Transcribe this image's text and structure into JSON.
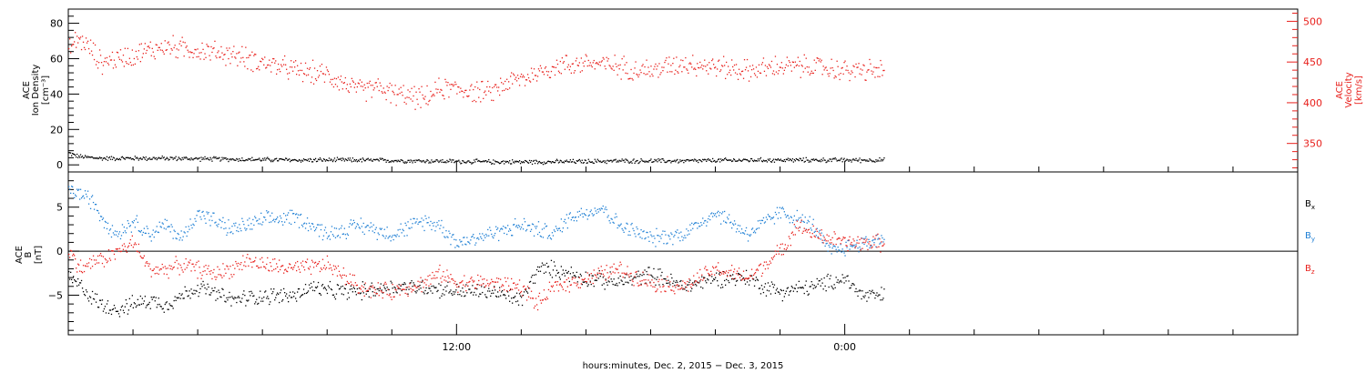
{
  "chart_data": [
    {
      "type": "scatter",
      "panel": "top",
      "left_axis": {
        "label_lines": [
          "ACE",
          "Ion Density",
          "[cm⁻³]"
        ],
        "ylim": [
          -4,
          88
        ],
        "ticks": [
          0,
          20,
          40,
          60,
          80
        ],
        "tick_labels": [
          "0",
          "20",
          "40",
          "60",
          "80"
        ],
        "color": "#000000"
      },
      "right_axis": {
        "label_lines": [
          "ACE",
          "Velocity",
          "[km/s]"
        ],
        "ylim": [
          315,
          515
        ],
        "ticks": [
          350,
          400,
          450,
          500
        ],
        "tick_labels": [
          "350",
          "400",
          "450",
          "500"
        ],
        "color": "#e8201c"
      },
      "series": [
        {
          "axis": "left",
          "color": "#000000",
          "anchors_x": [
            0,
            0.3,
            1,
            3,
            5,
            7,
            9,
            11,
            13,
            15,
            17,
            19,
            21,
            23,
            24,
            25.2
          ],
          "anchors_y": [
            7,
            5,
            4,
            4,
            3.5,
            3,
            3,
            2.5,
            2,
            2,
            2.5,
            2.5,
            3,
            3,
            3,
            3
          ]
        },
        {
          "axis": "right",
          "color": "#e8201c",
          "anchors_x": [
            0,
            0.3,
            0.7,
            1,
            2,
            3,
            4,
            5,
            6,
            7,
            8,
            8.5,
            9,
            9.5,
            10,
            11,
            11.5,
            12,
            12.5,
            13,
            13.5,
            14,
            15,
            16,
            17,
            18,
            19,
            20,
            21,
            22,
            23,
            24,
            25.2
          ],
          "anchors_y": [
            465,
            480,
            465,
            450,
            460,
            470,
            465,
            460,
            450,
            440,
            435,
            425,
            415,
            420,
            412,
            405,
            418,
            418,
            415,
            412,
            425,
            430,
            445,
            450,
            445,
            440,
            450,
            445,
            440,
            445,
            445,
            440,
            440
          ]
        }
      ]
    },
    {
      "type": "scatter",
      "panel": "bottom",
      "left_axis": {
        "label_lines": [
          "ACE",
          "B",
          "[nT]"
        ],
        "ylim": [
          -9.5,
          9
        ],
        "ticks": [
          -5,
          0,
          5
        ],
        "tick_labels": [
          "−5",
          "0",
          "5"
        ],
        "color": "#000000"
      },
      "zero_line": true,
      "legend": {
        "placement": "right",
        "entries": [
          {
            "base": "B",
            "sub": "x",
            "color": "#000000"
          },
          {
            "base": "B",
            "sub": "y",
            "color": "#1e7fd4"
          },
          {
            "base": "B",
            "sub": "z",
            "color": "#e8201c"
          }
        ]
      },
      "series": [
        {
          "name": "Bx",
          "color": "#000000",
          "anchors_x": [
            0,
            0.4,
            0.8,
            1,
            1.5,
            2,
            2.5,
            3,
            3.5,
            4,
            5,
            6,
            7,
            7.5,
            8,
            9,
            10,
            11,
            12,
            13,
            14,
            14.5,
            15,
            16,
            17,
            18,
            19,
            20,
            21,
            21.5,
            22,
            23,
            24,
            24.5,
            25.2
          ],
          "anchors_y": [
            -3,
            -4,
            -5.5,
            -6,
            -6.5,
            -6,
            -5.5,
            -6,
            -5,
            -4,
            -5.5,
            -5,
            -5,
            -4,
            -4.5,
            -4.5,
            -4,
            -4,
            -4.5,
            -4.5,
            -5.5,
            -2,
            -2,
            -3,
            -3.5,
            -2.5,
            -4,
            -3,
            -3,
            -4,
            -4.5,
            -4,
            -3,
            -5,
            -5
          ]
        },
        {
          "name": "By",
          "color": "#1e7fd4",
          "anchors_x": [
            0,
            0.4,
            0.8,
            1,
            1.5,
            2,
            2.5,
            3,
            3.5,
            4,
            5,
            6,
            7,
            8,
            9,
            10,
            11,
            11.5,
            12,
            13,
            14,
            15,
            15.5,
            16,
            16.5,
            17,
            18,
            19,
            20,
            21,
            22,
            23,
            23.5,
            24,
            25.2
          ],
          "anchors_y": [
            7,
            6.5,
            5.5,
            4,
            2,
            3.5,
            2,
            3,
            1.5,
            4.5,
            2.5,
            3.5,
            4,
            2,
            3,
            2,
            3.5,
            3,
            1,
            2,
            3,
            2,
            4,
            4.5,
            5,
            3,
            1.5,
            2,
            4.5,
            2,
            4.5,
            3,
            0,
            0.5,
            1.5
          ]
        },
        {
          "name": "Bz",
          "color": "#e8201c",
          "anchors_x": [
            0,
            0.4,
            0.8,
            1,
            1.5,
            2,
            2.5,
            3,
            3.5,
            4,
            4.5,
            5,
            5.5,
            6,
            7,
            8,
            9,
            9.5,
            10,
            11,
            11.5,
            12,
            13,
            14,
            14.5,
            15,
            16,
            17,
            18,
            19,
            20,
            21,
            22,
            22.5,
            23,
            24,
            25.2
          ],
          "anchors_y": [
            0,
            -2,
            -1,
            -1,
            0,
            1,
            -2,
            -2,
            -1.5,
            -2,
            -2.5,
            -2,
            -1,
            -1.5,
            -2,
            -1.5,
            -4,
            -4.5,
            -4.5,
            -3.5,
            -2.5,
            -3.5,
            -3.5,
            -4,
            -6,
            -4,
            -3,
            -2,
            -3.5,
            -4,
            -2,
            -3,
            0,
            3,
            2,
            1,
            1
          ]
        }
      ]
    }
  ],
  "x_axis": {
    "range": [
      0,
      38
    ],
    "tick_hours": [
      12,
      24
    ],
    "tick_labels": [
      "12:00",
      "0:00"
    ],
    "data_end_hours": 25.2,
    "title": "hours:minutes, Dec.  2, 2015 − Dec.  3, 2015"
  }
}
